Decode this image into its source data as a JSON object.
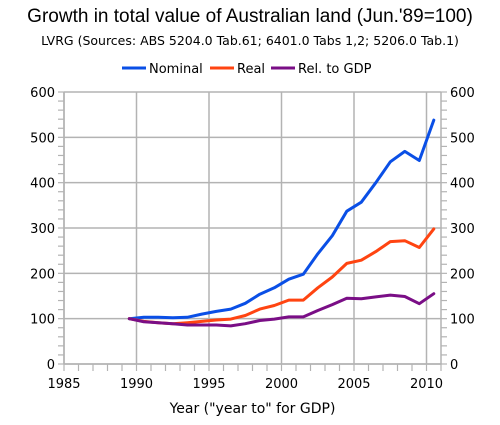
{
  "chart_data": {
    "type": "line",
    "title": "Growth in total value of Australian land (Jun.'89=100)",
    "subtitle": "LVRG (Sources: ABS 5204.0 Tab.61; 6401.0 Tabs 1,2; 5206.0 Tab.1)",
    "xlabel": "Year (\"year to\" for GDP)",
    "ylabel": "",
    "xlim": [
      1985,
      2011
    ],
    "ylim": [
      0,
      600
    ],
    "x_ticks": [
      1985,
      1990,
      1995,
      2000,
      2005,
      2010
    ],
    "y_ticks": [
      0,
      100,
      200,
      300,
      400,
      500,
      600
    ],
    "grid": true,
    "legend_position": "top",
    "x": [
      1989.5,
      1990.5,
      1991.5,
      1992.5,
      1993.5,
      1994.5,
      1995.5,
      1996.5,
      1997.5,
      1998.5,
      1999.5,
      2000.5,
      2001.5,
      2002.5,
      2003.5,
      2004.5,
      2005.5,
      2006.5,
      2007.5,
      2008.5,
      2009.5,
      2010.5
    ],
    "series": [
      {
        "name": "Nominal",
        "color": "#0a4fe6",
        "values": [
          100,
          103,
          103,
          102,
          103,
          110,
          116,
          121,
          134,
          154,
          168,
          187,
          198,
          243,
          283,
          337,
          357,
          400,
          446,
          469,
          449,
          538
        ]
      },
      {
        "name": "Real",
        "color": "#ff4411",
        "values": [
          100,
          94,
          91,
          89,
          91,
          94,
          97,
          99,
          107,
          121,
          129,
          141,
          141,
          168,
          192,
          222,
          229,
          248,
          270,
          272,
          257,
          298
        ]
      },
      {
        "name": "Rel. to GDP",
        "color": "#7a0e86",
        "values": [
          100,
          93,
          91,
          89,
          86,
          86,
          86,
          84,
          89,
          96,
          99,
          104,
          104,
          118,
          131,
          145,
          144,
          148,
          152,
          149,
          133,
          155
        ]
      }
    ]
  }
}
